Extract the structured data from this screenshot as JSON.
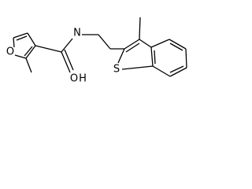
{
  "atoms": {
    "furan_oxygen": "O",
    "carbonyl_oxygen": "O",
    "nitrogen": "N",
    "hydrogen": "H",
    "sulfur": "S"
  }
}
